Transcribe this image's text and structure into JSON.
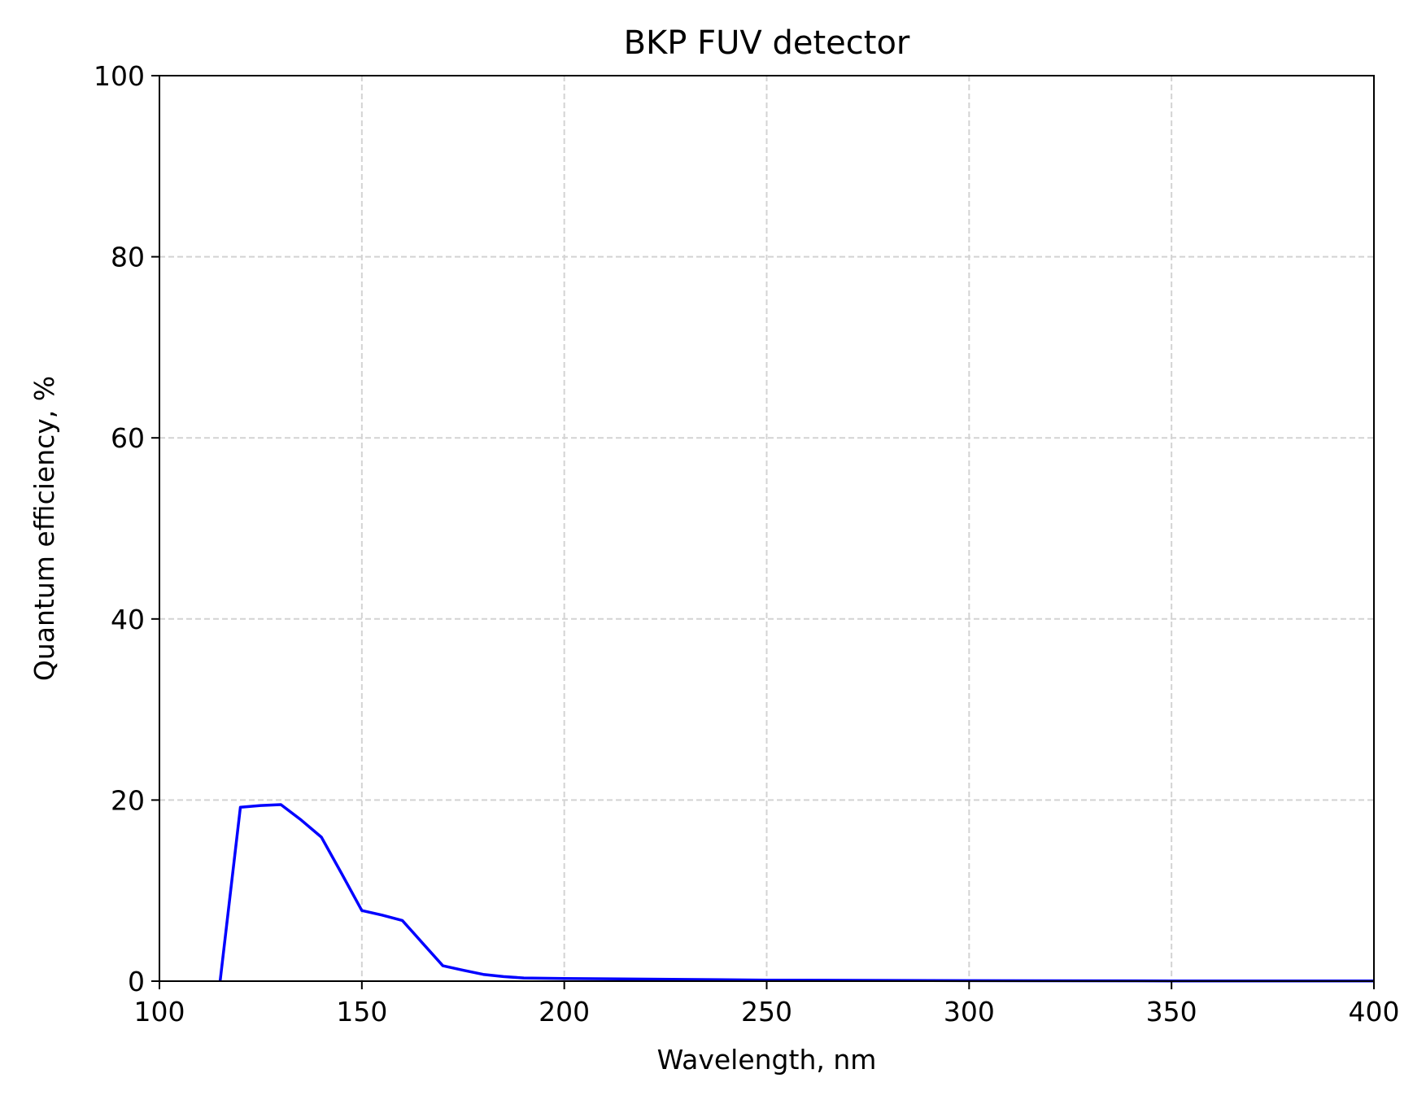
{
  "chart_data": {
    "type": "line",
    "title": "BKP FUV detector",
    "xlabel": "Wavelength, nm",
    "ylabel": "Quantum efficiency, %",
    "xlim": [
      100,
      400
    ],
    "ylim": [
      0,
      100
    ],
    "xticks": [
      100,
      150,
      200,
      250,
      300,
      350,
      400
    ],
    "yticks": [
      0,
      20,
      40,
      60,
      80,
      100
    ],
    "grid": true,
    "grid_style": "dashed",
    "series": [
      {
        "color": "#0000ff",
        "x": [
          115,
          120,
          125,
          130,
          135,
          140,
          145,
          150,
          155,
          160,
          165,
          170,
          175,
          180,
          185,
          190,
          200,
          250,
          300,
          350,
          400
        ],
        "y": [
          0,
          19.2,
          19.4,
          19.5,
          17.8,
          15.9,
          11.9,
          7.8,
          7.3,
          6.7,
          4.2,
          1.7,
          1.2,
          0.75,
          0.5,
          0.35,
          0.3,
          0.12,
          0.05,
          0.03,
          0.02
        ]
      }
    ]
  }
}
